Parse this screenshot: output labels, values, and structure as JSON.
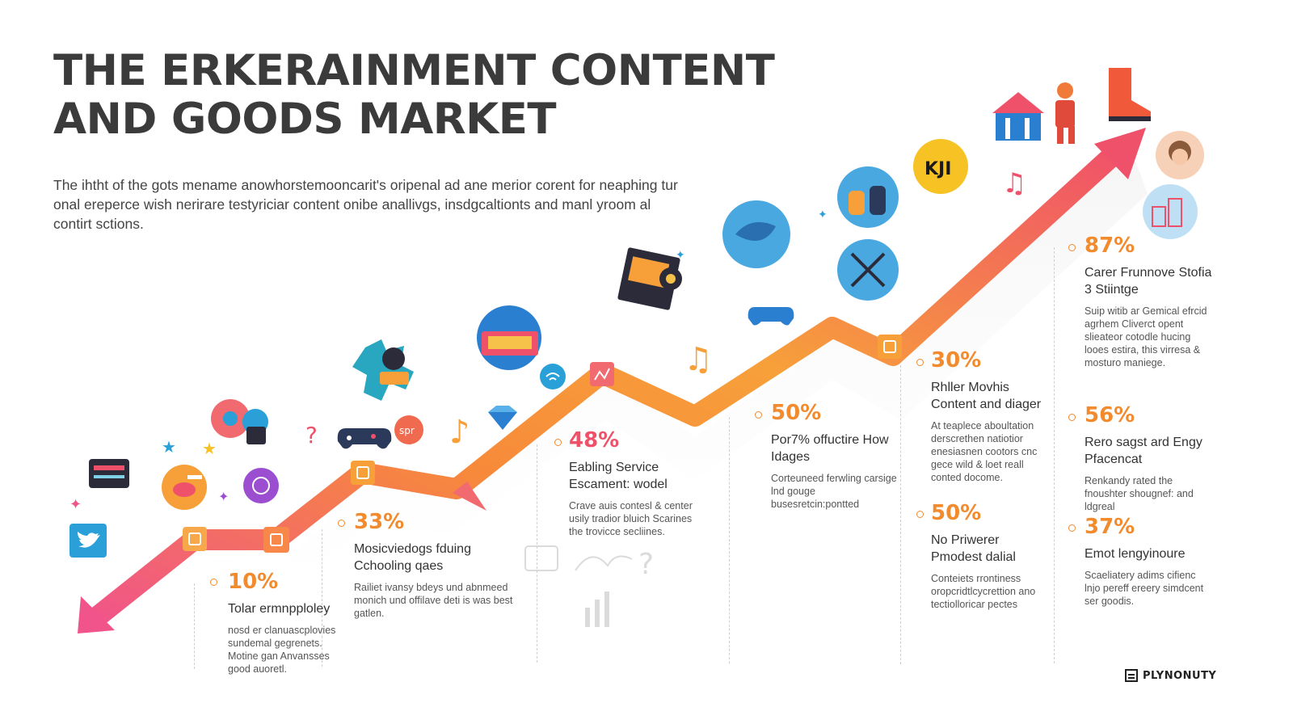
{
  "title_line1": "THE ERKERAINMENT CONTENT",
  "title_line2": "AND GOODS MARKET",
  "intro": "The ihtht of the gots mename anowhorstemooncarit's oripenal ad ane merior corent for neaphing tur onal ereperce wish nerirare testyriciar content onibe anallivgs, insdgcaltionts and manl yroom al contirt sctions.",
  "stats": [
    {
      "pct": "10%",
      "head": "Tolar ermnpploley",
      "desc": "nosd er clanuascplovies sundemal gegrenets. Motine gan Anvansses good auoretl."
    },
    {
      "pct": "33%",
      "head": "Mosicviedogs fduing Cchooling qaes",
      "desc": "Railiet ivansy bdeys und abnmeed monich und offilave deti is was best gatlen."
    },
    {
      "pct": "48%",
      "head": "Eabling Service Escament: wodel",
      "desc": "Crave auis contesl & center usily tradior bluich Scarines the trovicce secliines."
    },
    {
      "pct": "50%",
      "head": "Por7% offuctire How Idages",
      "desc": "Corteuneed ferwling carsige lnd gouge busesretcin:pontted"
    },
    {
      "pct": "30%",
      "head": "Rhller Movhis Content and diager",
      "desc": "At teaplece aboultation derscrethen natiotior enesiasnen cootors cnc gece wild & loet reall conted docome."
    },
    {
      "pct": "50%",
      "head": "No Priwerer Pmodest dalial",
      "desc": "Conteiets rrontiness oropcridtlcycrettion ano tectiolloricar pectes"
    },
    {
      "pct": "87%",
      "head": "Carer Frunnove Stofia 3 Stiintge",
      "desc": "Suip witib ar Gemical efrcid agrhem Cliverct opent slieateor cotodle hucing looes estira, this virresa & mosturo maniege."
    },
    {
      "pct": "56%",
      "head": "Rero sagst ard Engy Pfacencat",
      "desc": "Renkandy rated the fnoushter shougnef: and ldgreal"
    },
    {
      "pct": "37%",
      "head": "Emot lengyinoure",
      "desc": "Scaeliatery adims cifienc lnjo pereff ereery simdcent ser goodis."
    }
  ],
  "brand": "PLYNONUTY",
  "icons": [
    "twitter-icon",
    "movie-ticket-icon",
    "guitar-icon",
    "gamepad-icon",
    "controller-icon",
    "reel-icon",
    "vinyl-icon",
    "music-note-icon",
    "camera-icon",
    "headphones-icon",
    "ticket-icon",
    "circus-tent-icon",
    "hero-figure-icon",
    "boot-icon",
    "avatar-icon"
  ],
  "colors": {
    "arrow_start": "#f0548a",
    "arrow_mid": "#f7963a",
    "arrow_end": "#f0516a",
    "pct": "#f28a2e",
    "title": "#3b3b3b"
  }
}
